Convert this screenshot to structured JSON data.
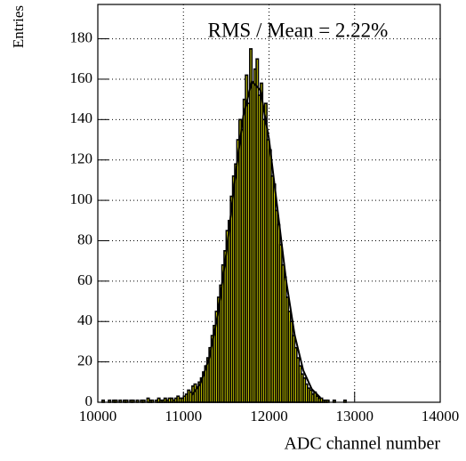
{
  "chart_data": {
    "type": "histogram",
    "ylabel": "Entries",
    "xlabel": "ADC channel number",
    "annotation": "RMS / Mean = 2.22%",
    "xlim": [
      10000,
      14000
    ],
    "ylim": [
      0,
      197
    ],
    "xticks": [
      10000,
      11000,
      12000,
      13000,
      14000
    ],
    "yticks": [
      0,
      20,
      40,
      60,
      80,
      100,
      120,
      140,
      160,
      180
    ],
    "grid": true,
    "color": "#ffff00",
    "bins": [
      10000,
      10025,
      10050,
      10075,
      10100,
      10125,
      10150,
      10175,
      10200,
      10225,
      10250,
      10275,
      10300,
      10325,
      10350,
      10375,
      10400,
      10425,
      10450,
      10475,
      10500,
      10525,
      10550,
      10575,
      10600,
      10625,
      10650,
      10675,
      10700,
      10725,
      10750,
      10775,
      10800,
      10825,
      10850,
      10875,
      10900,
      10925,
      10950,
      10975,
      11000,
      11025,
      11050,
      11075,
      11100,
      11125,
      11150,
      11175,
      11200,
      11225,
      11250,
      11275,
      11300,
      11325,
      11350,
      11375,
      11400,
      11425,
      11450,
      11475,
      11500,
      11525,
      11550,
      11575,
      11600,
      11625,
      11650,
      11675,
      11700,
      11725,
      11750,
      11775,
      11800,
      11825,
      11850,
      11875,
      11900,
      11925,
      11950,
      11975,
      12000,
      12025,
      12050,
      12075,
      12100,
      12125,
      12150,
      12175,
      12200,
      12225,
      12250,
      12275,
      12300,
      12325,
      12350,
      12375,
      12400,
      12425,
      12450,
      12475,
      12500,
      12525,
      12550,
      12575,
      12600,
      12625,
      12650,
      12675,
      12700,
      12725,
      12750,
      12775,
      12800,
      12825,
      12850,
      12875,
      12900,
      12925,
      12950,
      12975,
      13000,
      13025,
      13050,
      13075,
      13100,
      13125,
      13150,
      13175,
      13200,
      13225,
      13250,
      13275,
      13300,
      13325,
      13350,
      13375,
      13400,
      13425,
      13450,
      13475,
      13500,
      13525,
      13550,
      13575,
      13600,
      13625,
      13650,
      13675,
      13700,
      13725,
      13750,
      13775,
      13800,
      13825,
      13850,
      13875,
      13900,
      13925,
      13950,
      13975,
      14000
    ],
    "values": [
      0,
      0,
      1,
      0,
      0,
      1,
      0,
      1,
      1,
      0,
      1,
      0,
      1,
      1,
      0,
      1,
      1,
      0,
      1,
      0,
      1,
      1,
      0,
      2,
      1,
      1,
      0,
      1,
      2,
      1,
      1,
      2,
      1,
      2,
      2,
      1,
      2,
      3,
      2,
      2,
      3,
      4,
      6,
      5,
      8,
      9,
      7,
      10,
      12,
      15,
      18,
      22,
      27,
      33,
      38,
      45,
      52,
      58,
      68,
      75,
      85,
      90,
      102,
      112,
      118,
      130,
      140,
      135,
      150,
      162,
      148,
      175,
      158,
      165,
      170,
      152,
      158,
      140,
      148,
      130,
      125,
      112,
      108,
      95,
      88,
      78,
      68,
      62,
      52,
      45,
      40,
      33,
      27,
      22,
      18,
      14,
      12,
      9,
      7,
      6,
      4,
      5,
      3,
      2,
      2,
      1,
      1,
      1,
      0,
      0,
      1,
      0,
      0,
      0,
      0,
      1,
      0,
      0,
      0,
      0,
      0,
      0,
      0,
      0,
      0,
      0,
      0,
      0,
      0,
      0,
      0,
      0,
      0,
      0,
      0,
      0,
      0,
      0,
      0,
      0,
      0,
      0,
      0,
      0,
      0,
      0,
      0,
      0,
      0,
      0,
      0,
      0,
      0,
      0,
      0,
      0,
      0,
      0,
      0,
      0
    ],
    "fit": {
      "color": "#000000",
      "x": [
        11100,
        11200,
        11300,
        11400,
        11500,
        11600,
        11700,
        11800,
        11900,
        12000,
        12100,
        12200,
        12300,
        12400,
        12500,
        12600
      ],
      "values": [
        3.6,
        9.4,
        21.7,
        42.9,
        73.5,
        109.8,
        141.9,
        159,
        154.5,
        130.3,
        95.3,
        60.3,
        33.2,
        15.8,
        6.5,
        2.3
      ]
    }
  }
}
